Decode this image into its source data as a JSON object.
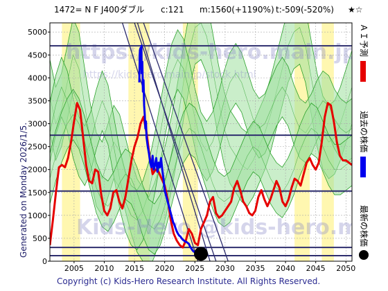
{
  "title": {
    "code_name": "1472= N F J400ダブル",
    "c_label": "c:121",
    "m_label": "m:1560(+1190%)",
    "t_label": "t:-509(-520%)",
    "stars": "★☆"
  },
  "generated_text": "Generated on Monday 2026/1/5.",
  "copyright": "Copyright (c) Kids-Hero Research Institute. All Rights Reserved.",
  "watermarks": [
    "https://kids-hero.main.jp/",
    "https://kids-hero.main.jp/stock.html",
    "Kids-Hero @kids-hero.main.jp"
  ],
  "legend": [
    {
      "label": "ＡＩ予測",
      "color": "#e60000",
      "kind": "line"
    },
    {
      "label": "過去の株価",
      "color": "#0000ee",
      "kind": "line"
    },
    {
      "label": "最新の株価",
      "color": "#000000",
      "kind": "dot"
    }
  ],
  "colors": {
    "ai_prediction": "#e60000",
    "past_price": "#0000ee",
    "latest": "#000000",
    "band_fill": "#9fe09f",
    "band_line": "#2aa02a",
    "yellow_zone": "#fff7b0",
    "hline": "#2d2d6e"
  },
  "chart_data": {
    "type": "line",
    "xlim": [
      2001,
      2051
    ],
    "ylim": [
      0,
      5200
    ],
    "x_ticks": [
      2005,
      2010,
      2015,
      2020,
      2025,
      2030,
      2035,
      2040,
      2045,
      2050
    ],
    "y_ticks": [
      0,
      500,
      1000,
      1500,
      2000,
      2500,
      3000,
      3500,
      4000,
      4500,
      5000
    ],
    "grid": true,
    "hlines": [
      4700,
      2750,
      1530,
      300,
      120
    ],
    "trendlines": [
      {
        "x": [
          2015.5,
          2027.5
        ],
        "y": [
          5200,
          0
        ]
      },
      {
        "x": [
          2015.0,
          2028.5
        ],
        "y": [
          5200,
          0
        ]
      },
      {
        "x": [
          2016.5,
          2030.5
        ],
        "y": [
          5200,
          0
        ]
      },
      {
        "x": [
          2013.0,
          2025.5
        ],
        "y": [
          5200,
          0
        ]
      }
    ],
    "yellow_zones": [
      [
        2003.0,
        2006.0
      ],
      [
        2014.0,
        2017.5
      ],
      [
        2023.0,
        2025.5
      ],
      [
        2041.5,
        2044.0
      ],
      [
        2046.0,
        2048.0
      ]
    ],
    "series": [
      {
        "name": "ＡＩ予測",
        "x": [
          2001.0,
          2001.5,
          2002.0,
          2002.5,
          2003.0,
          2003.5,
          2004.0,
          2004.5,
          2005.0,
          2005.5,
          2006.0,
          2006.5,
          2007.0,
          2007.5,
          2008.0,
          2008.5,
          2009.0,
          2009.5,
          2010.0,
          2010.5,
          2011.0,
          2011.5,
          2012.0,
          2012.5,
          2013.0,
          2013.5,
          2014.0,
          2014.5,
          2015.0,
          2015.5,
          2016.0,
          2016.5,
          2017.0,
          2017.5,
          2018.0,
          2018.5,
          2019.0,
          2019.5,
          2020.0,
          2020.5,
          2021.0,
          2021.5,
          2022.0,
          2022.5,
          2023.0,
          2023.5,
          2024.0,
          2024.5,
          2025.0,
          2025.5,
          2026.0,
          2026.5,
          2027.0,
          2027.5,
          2028.0,
          2028.5,
          2029.0,
          2029.5,
          2030.0,
          2030.5,
          2031.0,
          2031.5,
          2032.0,
          2032.5,
          2033.0,
          2033.5,
          2034.0,
          2034.5,
          2035.0,
          2035.5,
          2036.0,
          2036.5,
          2037.0,
          2037.5,
          2038.0,
          2038.5,
          2039.0,
          2039.5,
          2040.0,
          2040.5,
          2041.0,
          2041.5,
          2042.0,
          2042.5,
          2043.0,
          2043.5,
          2044.0,
          2044.5,
          2045.0,
          2045.5,
          2046.0,
          2046.5,
          2047.0,
          2047.5,
          2048.0,
          2048.5,
          2049.0,
          2049.5,
          2050.0,
          2050.5,
          2051.0
        ],
        "values": [
          350,
          900,
          1500,
          2050,
          2100,
          2050,
          2250,
          2600,
          3050,
          3450,
          3300,
          2700,
          2100,
          1750,
          1700,
          2000,
          1950,
          1450,
          1100,
          1000,
          1150,
          1500,
          1550,
          1300,
          1150,
          1400,
          1800,
          2200,
          2500,
          2700,
          3000,
          3150,
          2800,
          2300,
          1900,
          2000,
          1950,
          1800,
          1650,
          1350,
          900,
          600,
          450,
          350,
          300,
          450,
          700,
          600,
          400,
          350,
          700,
          850,
          1000,
          1300,
          1400,
          1050,
          950,
          1000,
          1100,
          1200,
          1300,
          1600,
          1750,
          1550,
          1300,
          1200,
          1050,
          1000,
          1100,
          1400,
          1550,
          1350,
          1200,
          1350,
          1550,
          1750,
          1600,
          1300,
          1200,
          1350,
          1600,
          1800,
          1750,
          1650,
          1900,
          2150,
          2250,
          2100,
          2000,
          2150,
          2600,
          3150,
          3450,
          3400,
          3050,
          2600,
          2300,
          2200,
          2200,
          2150,
          2100
        ]
      },
      {
        "name": "過去の株価",
        "x": [
          2015.8,
          2015.85,
          2015.9,
          2016.0,
          2016.05,
          2016.1,
          2016.15,
          2016.2,
          2016.3,
          2016.4,
          2016.5,
          2016.6,
          2016.7,
          2016.8,
          2016.9,
          2017.0,
          2017.2,
          2017.4,
          2017.6,
          2017.8,
          2018.0,
          2018.2,
          2018.4,
          2018.6,
          2018.8,
          2019.0,
          2019.2,
          2019.4,
          2019.6,
          2019.8,
          2020.0,
          2020.2,
          2020.4,
          2020.6,
          2020.8,
          2021.0,
          2021.2,
          2021.4,
          2021.6,
          2021.8,
          2022.0,
          2022.2,
          2022.4,
          2022.6,
          2022.8,
          2023.0,
          2023.2,
          2023.4,
          2023.6,
          2023.8,
          2024.0,
          2024.2,
          2024.4,
          2024.6,
          2024.8,
          2025.0,
          2025.2,
          2025.4,
          2025.6,
          2025.8
        ],
        "values": [
          3900,
          4300,
          4600,
          4650,
          4200,
          4500,
          4700,
          4100,
          4350,
          3700,
          3950,
          3400,
          3200,
          2900,
          3050,
          2700,
          2500,
          2350,
          2150,
          2050,
          2300,
          2000,
          2100,
          2250,
          1950,
          2150,
          2050,
          2250,
          2000,
          1800,
          1550,
          1450,
          1350,
          1250,
          1150,
          1050,
          950,
          850,
          800,
          720,
          650,
          600,
          560,
          540,
          500,
          470,
          450,
          430,
          420,
          400,
          380,
          320,
          280,
          240,
          210,
          200,
          190,
          170,
          160,
          160
        ]
      }
    ],
    "bands": [
      {
        "center": [
          3600,
          3000,
          3300,
          3900,
          4500,
          4200,
          3400,
          2600,
          2000,
          1800,
          2200,
          2600,
          2400,
          1900,
          1400,
          1000,
          800,
          600,
          900,
          1300,
          1800,
          2400,
          3100,
          3900,
          4600,
          5100,
          5200,
          4900,
          4200,
          3500,
          2900,
          2500,
          2300,
          2100,
          2000,
          2200,
          2500,
          2800,
          3200,
          3700,
          4200,
          4700,
          5000,
          5100,
          4700,
          4000,
          3300,
          2800,
          2600,
          2700,
          3000,
          3400,
          3800
        ],
        "width": 1600
      },
      {
        "center": [
          2800,
          3400,
          3800,
          3500,
          2900,
          2500,
          2300,
          2600,
          3100,
          3500,
          3200,
          2500,
          1800,
          1300,
          1000,
          900,
          1100,
          1500,
          2100,
          2800,
          3500,
          4100,
          4400,
          4200,
          3700,
          3100,
          2600,
          2400,
          2600,
          3000,
          3500,
          3900,
          4100,
          3900,
          3500,
          3100,
          2900,
          3000,
          3300,
          3600,
          3800,
          3600,
          3200,
          2900,
          2800,
          3000,
          3300,
          3500,
          3400,
          3100,
          2900,
          2800,
          2900
        ],
        "width": 1300
      },
      {
        "center": [
          1800,
          2300,
          2700,
          3000,
          3200,
          3000,
          2600,
          2100,
          1600,
          1300,
          1200,
          1400,
          1700,
          1900,
          1800,
          1500,
          1100,
          800,
          700,
          900,
          1300,
          1800,
          2300,
          2700,
          2900,
          2800,
          2500,
          2100,
          1700,
          1400,
          1300,
          1400,
          1700,
          2000,
          2300,
          2500,
          2400,
          2100,
          1800,
          1600,
          1500,
          1700,
          2000,
          2400,
          2700,
          2900,
          2800,
          2500,
          2200,
          2000,
          2000,
          2100,
          2200
        ],
        "width": 1100
      }
    ],
    "latest": {
      "x": 2026.0,
      "y": 160
    }
  }
}
